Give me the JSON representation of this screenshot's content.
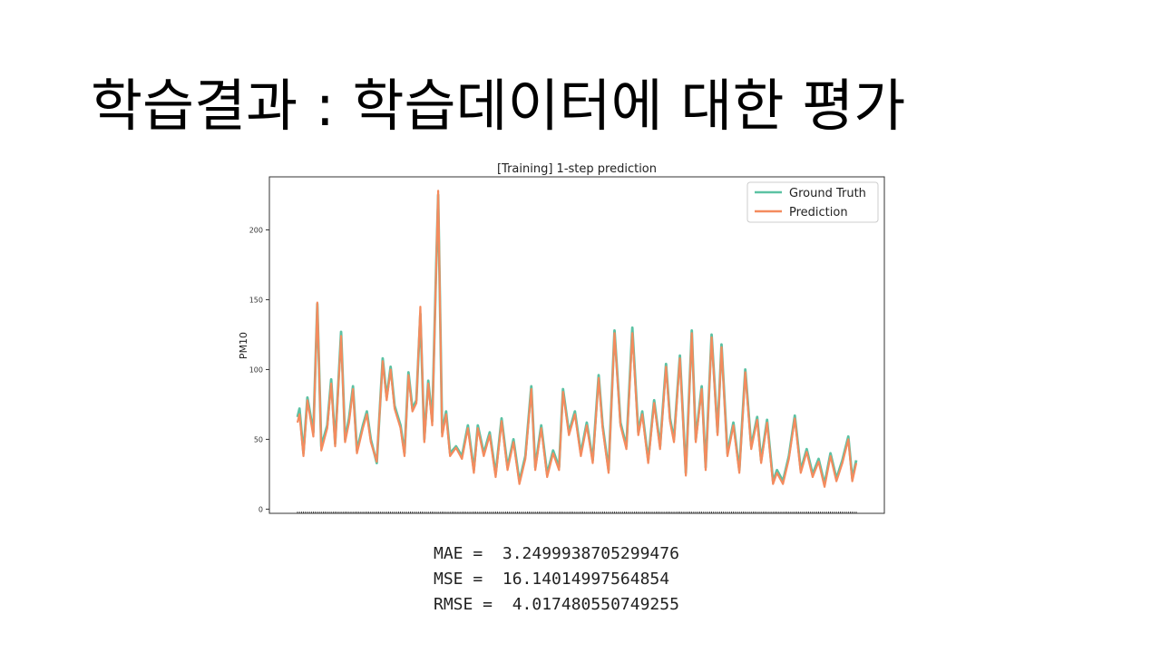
{
  "slide": {
    "title": "학습결과 : 학습데이터에 대한 평가"
  },
  "metrics": [
    {
      "label": "MAE =  3.2499938705299476"
    },
    {
      "label": "MSE =  16.14014997564854"
    },
    {
      "label": "RMSE =  4.017480550749255"
    }
  ],
  "colors": {
    "ground_truth": "#5cc2a3",
    "prediction": "#f48b5e"
  },
  "chart_data": {
    "type": "line",
    "title": "[Training] 1-step prediction",
    "xlabel": "",
    "ylabel": "PM10",
    "ylim": [
      -3,
      238
    ],
    "yticks": [
      "0",
      "50",
      "100",
      "150",
      "200"
    ],
    "grid": false,
    "legend": "top-right",
    "series": [
      {
        "name": "Ground Truth",
        "values": []
      },
      {
        "name": "Prediction",
        "values": []
      }
    ],
    "anchors_ground_truth": [
      [
        0,
        66
      ],
      [
        1,
        72
      ],
      [
        3,
        40
      ],
      [
        5,
        80
      ],
      [
        8,
        55
      ],
      [
        10,
        147
      ],
      [
        12,
        45
      ],
      [
        15,
        60
      ],
      [
        17,
        93
      ],
      [
        19,
        47
      ],
      [
        22,
        127
      ],
      [
        24,
        50
      ],
      [
        26,
        65
      ],
      [
        28,
        88
      ],
      [
        30,
        42
      ],
      [
        33,
        60
      ],
      [
        35,
        70
      ],
      [
        37,
        50
      ],
      [
        40,
        33
      ],
      [
        43,
        108
      ],
      [
        45,
        80
      ],
      [
        47,
        102
      ],
      [
        49,
        74
      ],
      [
        52,
        60
      ],
      [
        54,
        40
      ],
      [
        56,
        98
      ],
      [
        58,
        72
      ],
      [
        60,
        78
      ],
      [
        62,
        140
      ],
      [
        64,
        50
      ],
      [
        66,
        92
      ],
      [
        68,
        63
      ],
      [
        70,
        175
      ],
      [
        71,
        225
      ],
      [
        73,
        55
      ],
      [
        75,
        70
      ],
      [
        77,
        40
      ],
      [
        80,
        45
      ],
      [
        83,
        38
      ],
      [
        86,
        60
      ],
      [
        89,
        28
      ],
      [
        91,
        60
      ],
      [
        94,
        40
      ],
      [
        97,
        55
      ],
      [
        100,
        25
      ],
      [
        103,
        65
      ],
      [
        106,
        30
      ],
      [
        109,
        50
      ],
      [
        112,
        20
      ],
      [
        115,
        38
      ],
      [
        118,
        88
      ],
      [
        120,
        30
      ],
      [
        123,
        60
      ],
      [
        126,
        25
      ],
      [
        129,
        42
      ],
      [
        132,
        30
      ],
      [
        134,
        86
      ],
      [
        137,
        55
      ],
      [
        140,
        70
      ],
      [
        143,
        40
      ],
      [
        146,
        62
      ],
      [
        149,
        35
      ],
      [
        152,
        96
      ],
      [
        154,
        60
      ],
      [
        157,
        28
      ],
      [
        160,
        128
      ],
      [
        163,
        62
      ],
      [
        166,
        45
      ],
      [
        169,
        130
      ],
      [
        172,
        55
      ],
      [
        174,
        70
      ],
      [
        177,
        35
      ],
      [
        180,
        78
      ],
      [
        183,
        45
      ],
      [
        186,
        104
      ],
      [
        188,
        65
      ],
      [
        190,
        50
      ],
      [
        193,
        110
      ],
      [
        196,
        26
      ],
      [
        199,
        128
      ],
      [
        201,
        50
      ],
      [
        204,
        88
      ],
      [
        206,
        30
      ],
      [
        209,
        125
      ],
      [
        212,
        55
      ],
      [
        214,
        118
      ],
      [
        217,
        40
      ],
      [
        220,
        62
      ],
      [
        223,
        28
      ],
      [
        226,
        100
      ],
      [
        229,
        45
      ],
      [
        232,
        66
      ],
      [
        234,
        35
      ],
      [
        237,
        64
      ],
      [
        240,
        20
      ],
      [
        242,
        28
      ],
      [
        245,
        20
      ],
      [
        248,
        38
      ],
      [
        251,
        67
      ],
      [
        254,
        28
      ],
      [
        257,
        43
      ],
      [
        260,
        25
      ],
      [
        263,
        36
      ],
      [
        266,
        18
      ],
      [
        269,
        40
      ],
      [
        272,
        22
      ],
      [
        275,
        35
      ],
      [
        278,
        52
      ],
      [
        280,
        22
      ],
      [
        282,
        35
      ]
    ],
    "anchors_prediction": [
      [
        0,
        62
      ],
      [
        1,
        68
      ],
      [
        3,
        38
      ],
      [
        5,
        78
      ],
      [
        8,
        52
      ],
      [
        10,
        148
      ],
      [
        12,
        42
      ],
      [
        15,
        58
      ],
      [
        17,
        90
      ],
      [
        19,
        45
      ],
      [
        22,
        124
      ],
      [
        24,
        48
      ],
      [
        26,
        62
      ],
      [
        28,
        86
      ],
      [
        30,
        40
      ],
      [
        33,
        58
      ],
      [
        35,
        68
      ],
      [
        37,
        48
      ],
      [
        40,
        34
      ],
      [
        43,
        106
      ],
      [
        45,
        78
      ],
      [
        47,
        100
      ],
      [
        49,
        72
      ],
      [
        52,
        58
      ],
      [
        54,
        38
      ],
      [
        56,
        96
      ],
      [
        58,
        70
      ],
      [
        60,
        76
      ],
      [
        62,
        145
      ],
      [
        64,
        48
      ],
      [
        66,
        90
      ],
      [
        68,
        60
      ],
      [
        70,
        173
      ],
      [
        71,
        228
      ],
      [
        73,
        52
      ],
      [
        75,
        68
      ],
      [
        77,
        38
      ],
      [
        80,
        44
      ],
      [
        83,
        36
      ],
      [
        86,
        58
      ],
      [
        89,
        26
      ],
      [
        91,
        58
      ],
      [
        94,
        38
      ],
      [
        97,
        53
      ],
      [
        100,
        23
      ],
      [
        103,
        63
      ],
      [
        106,
        28
      ],
      [
        109,
        48
      ],
      [
        112,
        18
      ],
      [
        115,
        36
      ],
      [
        118,
        86
      ],
      [
        120,
        28
      ],
      [
        123,
        58
      ],
      [
        126,
        23
      ],
      [
        129,
        40
      ],
      [
        132,
        28
      ],
      [
        134,
        84
      ],
      [
        137,
        53
      ],
      [
        140,
        68
      ],
      [
        143,
        38
      ],
      [
        146,
        60
      ],
      [
        149,
        33
      ],
      [
        152,
        94
      ],
      [
        154,
        58
      ],
      [
        157,
        26
      ],
      [
        160,
        126
      ],
      [
        163,
        60
      ],
      [
        166,
        43
      ],
      [
        169,
        126
      ],
      [
        172,
        53
      ],
      [
        174,
        68
      ],
      [
        177,
        33
      ],
      [
        180,
        76
      ],
      [
        183,
        43
      ],
      [
        186,
        102
      ],
      [
        188,
        63
      ],
      [
        190,
        48
      ],
      [
        193,
        108
      ],
      [
        196,
        24
      ],
      [
        199,
        126
      ],
      [
        201,
        48
      ],
      [
        204,
        86
      ],
      [
        206,
        28
      ],
      [
        209,
        123
      ],
      [
        212,
        53
      ],
      [
        214,
        116
      ],
      [
        217,
        38
      ],
      [
        220,
        60
      ],
      [
        223,
        26
      ],
      [
        226,
        98
      ],
      [
        229,
        43
      ],
      [
        232,
        64
      ],
      [
        234,
        33
      ],
      [
        237,
        62
      ],
      [
        240,
        18
      ],
      [
        242,
        26
      ],
      [
        245,
        18
      ],
      [
        248,
        36
      ],
      [
        251,
        65
      ],
      [
        254,
        26
      ],
      [
        257,
        41
      ],
      [
        260,
        23
      ],
      [
        263,
        34
      ],
      [
        266,
        16
      ],
      [
        269,
        38
      ],
      [
        272,
        20
      ],
      [
        275,
        33
      ],
      [
        278,
        50
      ],
      [
        280,
        20
      ],
      [
        282,
        33
      ]
    ]
  }
}
